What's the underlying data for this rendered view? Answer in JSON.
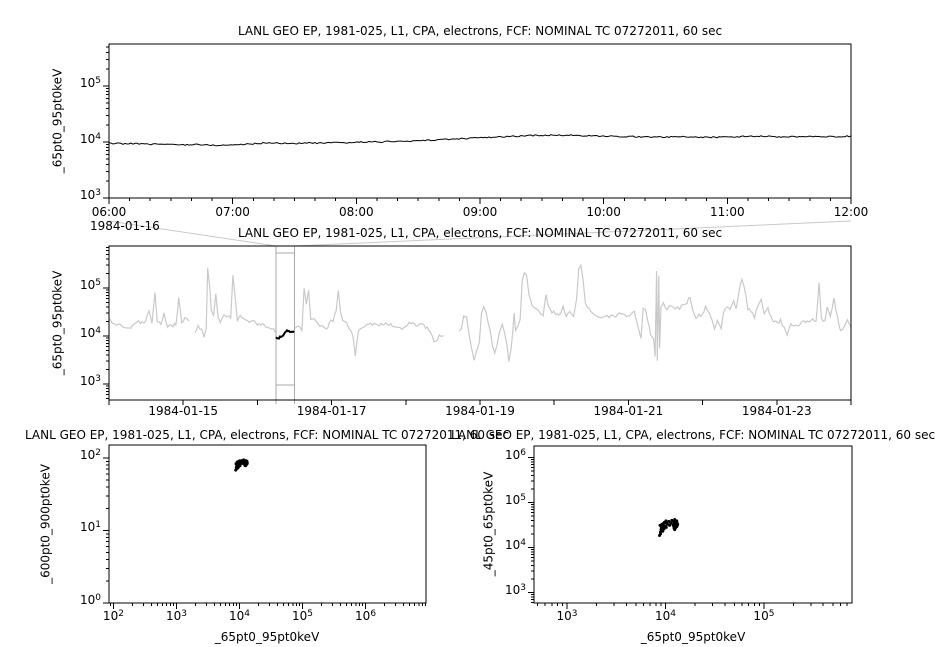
{
  "panels": {
    "detail": {
      "title": "LANL GEO EP, 1981-025, L1, CPA, electrons, FCF: NOMINAL TC 07272011, 60 sec",
      "ylabel": "_65pt0_95pt0keV",
      "context_date": "1984-01-16",
      "x_tick_hours": [
        6,
        7,
        8,
        9,
        10,
        11,
        12
      ],
      "x_tick_labels": [
        "06:00",
        "07:00",
        "08:00",
        "09:00",
        "10:00",
        "11:00",
        "12:00"
      ],
      "y_tick_exponents": [
        3,
        4,
        5
      ]
    },
    "overview": {
      "title": "LANL GEO EP, 1981-025, L1, CPA, electrons, FCF: NOMINAL TC 07272011, 60 sec",
      "ylabel": "_65pt0_95pt0keV",
      "x_tick_days": [
        15,
        17,
        19,
        21,
        23
      ],
      "x_tick_labels": [
        "1984-01-15",
        "1984-01-17",
        "1984-01-19",
        "1984-01-21",
        "1984-01-23"
      ],
      "y_tick_exponents": [
        3,
        4,
        5
      ]
    },
    "scatter_left": {
      "title": "LANL GEO EP, 1981-025, L1, CPA, electrons, FCF: NOMINAL TC 07272011, 60 sec",
      "xlabel": "_65pt0_95pt0keV",
      "ylabel": "_600pt0_900pt0keV",
      "x_tick_exponents": [
        2,
        3,
        4,
        5,
        6
      ],
      "y_tick_exponents": [
        0,
        1,
        2
      ]
    },
    "scatter_right": {
      "title": "LANL GEO EP, 1981-025, L1, CPA, electrons, FCF: NOMINAL TC 07272011, 60 sec",
      "xlabel": "_65pt0_95pt0keV",
      "ylabel": "_45pt0_65pt0keV",
      "x_tick_exponents": [
        3,
        4,
        5
      ],
      "y_tick_exponents": [
        3,
        4,
        5,
        6
      ]
    }
  },
  "colors": {
    "background": "#ffffff",
    "foreground": "#000000",
    "detail_series": "#000000",
    "overview_series": "#c9c9c9",
    "highlight_series": "#000000",
    "zoom_box": "#aaaaaa",
    "connector": "#c9c9c9"
  },
  "chart_data": {
    "window": {
      "date": "1984-01-16",
      "hours_start": 6.0,
      "hours_step": 0.1,
      "count": 61,
      "e65pt0_95pt0keV": [
        9500,
        9300,
        9400,
        9100,
        9200,
        9000,
        8900,
        9100,
        8800,
        8700,
        8900,
        9100,
        9400,
        9700,
        9500,
        9400,
        9600,
        9500,
        9700,
        9600,
        9900,
        10100,
        10000,
        10300,
        10200,
        10500,
        10800,
        11000,
        11300,
        11600,
        11900,
        12100,
        12400,
        12700,
        13000,
        13200,
        13100,
        13300,
        13000,
        12800,
        12600,
        12700,
        12500,
        12400,
        12300,
        12200,
        12400,
        12300,
        12100,
        12200,
        12300,
        12500,
        12700,
        12600,
        12400,
        12300,
        12500,
        12400,
        12600,
        12500,
        12700
      ],
      "e600pt0_900pt0keV": [
        78,
        84,
        73,
        80,
        88,
        76,
        70,
        79,
        83,
        68,
        74,
        81,
        86,
        90,
        77,
        73,
        82,
        87,
        79,
        75,
        85,
        91,
        82,
        88,
        78,
        86,
        92,
        84,
        89,
        94,
        87,
        90,
        85,
        92,
        88,
        83,
        90,
        86,
        82,
        88,
        80,
        85,
        78,
        83,
        86,
        79,
        84,
        88,
        81,
        85,
        89,
        83,
        87,
        80,
        84,
        88,
        85,
        82,
        86,
        84,
        87
      ],
      "e45pt0_65pt0keV": [
        26000,
        30000,
        23000,
        28000,
        33000,
        25000,
        20000,
        27000,
        31000,
        18500,
        22000,
        28000,
        32000,
        36000,
        27000,
        24000,
        30000,
        34000,
        26000,
        29000,
        35000,
        39000,
        30000,
        36000,
        28000,
        33000,
        38000,
        31000,
        35000,
        40000,
        32000,
        37000,
        42000,
        34000,
        39000,
        31000,
        36000,
        33000,
        29000,
        35000,
        27000,
        32000,
        29000,
        25000,
        31000,
        27000,
        33000,
        36000,
        30000,
        34000,
        38000,
        31000,
        35000,
        28000,
        32000,
        37000,
        34000,
        36000,
        30000,
        33000,
        35000
      ]
    },
    "detail": {
      "type": "line",
      "x_scale": "linear",
      "x_range_hours": [
        6,
        12
      ],
      "y_scale": "log",
      "y_range": [
        1000,
        562000
      ],
      "series_key": "e65pt0_95pt0keV"
    },
    "overview": {
      "type": "line",
      "x_scale": "linear",
      "x_unit": "day of 1984-01",
      "x_range_days": [
        14,
        24
      ],
      "y_scale": "log",
      "y_range": [
        464,
        750000
      ],
      "highlight_window_days": [
        16.25,
        16.5
      ],
      "segments": [
        [
          [
            14.0,
            23400
          ],
          [
            14.07,
            17000
          ],
          [
            14.13,
            18400
          ],
          [
            14.2,
            14500
          ],
          [
            14.27,
            14000
          ],
          [
            14.34,
            17000
          ],
          [
            14.4,
            20500
          ],
          [
            14.47,
            17500
          ],
          [
            14.54,
            32000
          ],
          [
            14.58,
            19300
          ],
          [
            14.62,
            74000
          ],
          [
            14.65,
            21500
          ],
          [
            14.7,
            17000
          ],
          [
            14.74,
            29700
          ],
          [
            14.79,
            15600
          ],
          [
            14.83,
            18400
          ],
          [
            14.86,
            16400
          ],
          [
            14.9,
            17500
          ],
          [
            14.94,
            59000
          ],
          [
            14.98,
            19900
          ],
          [
            15.02,
            22600
          ],
          [
            15.08,
            20500
          ]
        ],
        [
          [
            15.16,
            11900
          ],
          [
            15.2,
            16400
          ],
          [
            15.25,
            13300
          ],
          [
            15.28,
            9200
          ],
          [
            15.31,
            14500
          ],
          [
            15.33,
            278000
          ],
          [
            15.36,
            99000
          ],
          [
            15.38,
            35000
          ],
          [
            15.41,
            25300
          ],
          [
            15.44,
            72000
          ],
          [
            15.47,
            23400
          ],
          [
            15.5,
            20500
          ],
          [
            15.55,
            29700
          ],
          [
            15.59,
            26500
          ],
          [
            15.64,
            23400
          ],
          [
            15.67,
            186000
          ],
          [
            15.7,
            72000
          ],
          [
            15.73,
            20500
          ],
          [
            15.77,
            25300
          ],
          [
            15.82,
            22600
          ],
          [
            15.89,
            20500
          ],
          [
            15.95,
            19300
          ],
          [
            16.02,
            17500
          ],
          [
            16.09,
            16400
          ],
          [
            16.16,
            15200
          ],
          [
            16.22,
            13300
          ],
          [
            16.24,
            12000
          ]
        ],
        [
          [
            16.51,
            14500
          ],
          [
            16.55,
            15200
          ],
          [
            16.6,
            14000
          ],
          [
            16.63,
            99000
          ],
          [
            16.66,
            44000
          ],
          [
            16.69,
            96000
          ],
          [
            16.72,
            21500
          ],
          [
            16.76,
            24200
          ],
          [
            16.82,
            17500
          ],
          [
            16.87,
            16400
          ],
          [
            16.93,
            13300
          ],
          [
            16.97,
            19300
          ],
          [
            17.02,
            20500
          ],
          [
            17.06,
            35000
          ],
          [
            17.09,
            84000
          ],
          [
            17.12,
            29700
          ],
          [
            17.15,
            22600
          ],
          [
            17.2,
            19900
          ],
          [
            17.24,
            14000
          ],
          [
            17.29,
            10200
          ],
          [
            17.32,
            4000
          ],
          [
            17.36,
            12700
          ],
          [
            17.46,
            17000
          ],
          [
            17.55,
            17800
          ],
          [
            17.64,
            17000
          ],
          [
            17.73,
            17500
          ],
          [
            17.82,
            16400
          ],
          [
            17.89,
            15200
          ],
          [
            17.95,
            14500
          ],
          [
            18.02,
            17500
          ],
          [
            18.09,
            18400
          ],
          [
            18.16,
            16400
          ],
          [
            18.22,
            17000
          ],
          [
            18.29,
            15200
          ],
          [
            18.33,
            11400
          ],
          [
            18.38,
            8250
          ],
          [
            18.41,
            7400
          ],
          [
            18.45,
            10900
          ],
          [
            18.48,
            9200
          ],
          [
            18.51,
            10200
          ]
        ],
        [
          [
            18.72,
            12700
          ],
          [
            18.75,
            14000
          ],
          [
            18.78,
            27400
          ],
          [
            18.82,
            24200
          ],
          [
            18.85,
            11400
          ],
          [
            18.89,
            5500
          ],
          [
            18.92,
            3160
          ],
          [
            18.95,
            4870
          ],
          [
            18.99,
            7870
          ],
          [
            19.02,
            29700
          ],
          [
            19.05,
            38800
          ],
          [
            19.08,
            32000
          ],
          [
            19.11,
            17500
          ],
          [
            19.14,
            12700
          ],
          [
            19.17,
            6000
          ],
          [
            19.2,
            4560
          ],
          [
            19.23,
            7000
          ],
          [
            19.26,
            11900
          ],
          [
            19.3,
            18400
          ],
          [
            19.33,
            11900
          ],
          [
            19.36,
            6500
          ],
          [
            19.39,
            2840
          ],
          [
            19.42,
            5500
          ],
          [
            19.44,
            10900
          ],
          [
            19.46,
            32000
          ],
          [
            19.48,
            13300
          ],
          [
            19.51,
            17000
          ],
          [
            19.54,
            20500
          ],
          [
            19.57,
            159000
          ],
          [
            19.6,
            202000
          ],
          [
            19.63,
            180000
          ],
          [
            19.66,
            74000
          ],
          [
            19.7,
            43000
          ],
          [
            19.74,
            36600
          ],
          [
            19.79,
            32000
          ],
          [
            19.85,
            26500
          ],
          [
            19.89,
            72000
          ],
          [
            19.93,
            37800
          ],
          [
            19.97,
            32000
          ],
          [
            20.02,
            29700
          ],
          [
            20.06,
            25300
          ],
          [
            20.12,
            38800
          ],
          [
            20.16,
            26500
          ],
          [
            20.21,
            32000
          ],
          [
            20.26,
            26500
          ],
          [
            20.3,
            56000
          ],
          [
            20.33,
            237000
          ],
          [
            20.36,
            300000
          ],
          [
            20.39,
            147000
          ],
          [
            20.42,
            50500
          ],
          [
            20.47,
            35000
          ],
          [
            20.51,
            29700
          ],
          [
            20.57,
            26500
          ],
          [
            20.63,
            24200
          ],
          [
            20.69,
            25300
          ],
          [
            20.74,
            24200
          ],
          [
            20.77,
            28300
          ],
          [
            20.83,
            26500
          ],
          [
            20.9,
            29700
          ],
          [
            20.97,
            26500
          ],
          [
            21.04,
            28300
          ],
          [
            21.08,
            32000
          ],
          [
            21.12,
            17000
          ],
          [
            21.17,
            9200
          ],
          [
            21.2,
            38800
          ],
          [
            21.23,
            35000
          ],
          [
            21.26,
            19900
          ],
          [
            21.3,
            10900
          ],
          [
            21.34,
            8250
          ],
          [
            21.36,
            3460
          ],
          [
            21.38,
            218000
          ],
          [
            21.39,
            3160
          ],
          [
            21.41,
            172000
          ],
          [
            21.42,
            5500
          ],
          [
            21.44,
            40800
          ],
          [
            21.47,
            47900
          ],
          [
            21.52,
            37800
          ],
          [
            21.57,
            40800
          ],
          [
            21.63,
            37800
          ],
          [
            21.69,
            38800
          ],
          [
            21.74,
            45800
          ],
          [
            21.79,
            50500
          ],
          [
            21.83,
            66000
          ],
          [
            21.87,
            35000
          ],
          [
            21.91,
            24200
          ],
          [
            21.95,
            26500
          ],
          [
            22.0,
            28300
          ],
          [
            22.04,
            38800
          ],
          [
            22.09,
            32000
          ],
          [
            22.13,
            19900
          ],
          [
            22.16,
            14000
          ],
          [
            22.2,
            22600
          ],
          [
            22.25,
            14000
          ],
          [
            22.28,
            32000
          ],
          [
            22.33,
            43000
          ],
          [
            22.37,
            33600
          ],
          [
            22.42,
            52000
          ],
          [
            22.45,
            38800
          ],
          [
            22.49,
            84000
          ],
          [
            22.53,
            154000
          ],
          [
            22.56,
            112000
          ],
          [
            22.61,
            37800
          ],
          [
            22.65,
            34200
          ],
          [
            22.7,
            23400
          ],
          [
            22.74,
            40100
          ],
          [
            22.79,
            56000
          ],
          [
            22.83,
            27400
          ],
          [
            22.88,
            36600
          ],
          [
            22.92,
            25300
          ],
          [
            22.96,
            19900
          ],
          [
            23.01,
            18400
          ],
          [
            23.05,
            21500
          ],
          [
            23.1,
            14500
          ],
          [
            23.14,
            10500
          ],
          [
            23.19,
            17000
          ],
          [
            23.23,
            15600
          ],
          [
            23.28,
            17000
          ],
          [
            23.33,
            18400
          ],
          [
            23.39,
            19900
          ],
          [
            23.46,
            21500
          ],
          [
            23.53,
            19900
          ],
          [
            23.57,
            136000
          ],
          [
            23.6,
            22600
          ],
          [
            23.65,
            20500
          ],
          [
            23.68,
            43000
          ],
          [
            23.72,
            24200
          ],
          [
            23.77,
            59000
          ],
          [
            23.82,
            23400
          ],
          [
            23.86,
            12700
          ],
          [
            23.91,
            16400
          ],
          [
            23.95,
            20500
          ],
          [
            24.0,
            15600
          ]
        ]
      ]
    },
    "scatter_left": {
      "type": "scatter",
      "x_scale": "log",
      "x_range": [
        85,
        9100000
      ],
      "y_scale": "log",
      "y_range": [
        1,
        151
      ],
      "x_key": "e65pt0_95pt0keV",
      "y_key": "e600pt0_900pt0keV"
    },
    "scatter_right": {
      "type": "scatter",
      "x_scale": "log",
      "x_range": [
        462,
        784000
      ],
      "y_scale": "log",
      "y_range": [
        585,
        1803000
      ],
      "x_key": "e65pt0_95pt0keV",
      "y_key": "e45pt0_65pt0keV"
    }
  }
}
